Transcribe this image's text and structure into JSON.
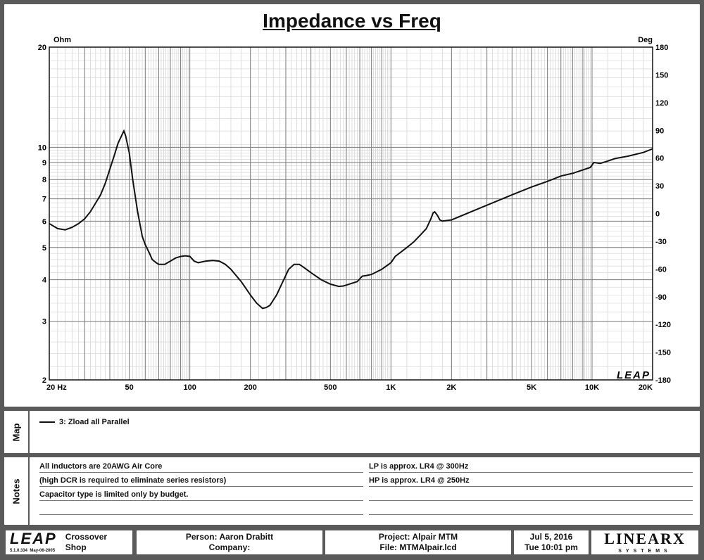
{
  "chart_data": {
    "type": "line",
    "title": "Impedance vs Freq",
    "left_axis_unit": "Ohm",
    "right_axis_unit": "Deg",
    "xscale": "log",
    "yscale": "log",
    "xlim": [
      20,
      20000
    ],
    "ylim": [
      2,
      20
    ],
    "y2lim": [
      -180,
      180
    ],
    "x_tick_labels": [
      {
        "v": 20,
        "t": "20  Hz"
      },
      {
        "v": 50,
        "t": "50"
      },
      {
        "v": 100,
        "t": "100"
      },
      {
        "v": 200,
        "t": "200"
      },
      {
        "v": 500,
        "t": "500"
      },
      {
        "v": 1000,
        "t": "1K"
      },
      {
        "v": 2000,
        "t": "2K"
      },
      {
        "v": 5000,
        "t": "5K"
      },
      {
        "v": 10000,
        "t": "10K"
      },
      {
        "v": 20000,
        "t": "20K"
      }
    ],
    "y_tick_labels": [
      {
        "v": 20,
        "t": "20"
      },
      {
        "v": 10,
        "t": "10"
      },
      {
        "v": 9,
        "t": "9"
      },
      {
        "v": 8,
        "t": "8"
      },
      {
        "v": 7,
        "t": "7"
      },
      {
        "v": 6,
        "t": "6"
      },
      {
        "v": 5,
        "t": "5"
      },
      {
        "v": 4,
        "t": "4"
      },
      {
        "v": 3,
        "t": "3"
      },
      {
        "v": 2,
        "t": "2"
      }
    ],
    "y2_ticks": [
      180,
      150,
      120,
      90,
      60,
      30,
      0,
      -30,
      -60,
      -90,
      -120,
      -150,
      -180
    ],
    "watermark": "LEAP",
    "series": [
      {
        "name": "3: Zload all Parallel",
        "x": [
          20,
          22,
          24,
          26,
          28,
          30,
          32,
          34,
          36,
          38,
          40,
          42,
          44,
          46,
          47,
          48,
          50,
          52,
          55,
          58,
          60,
          63,
          65,
          68,
          70,
          75,
          80,
          85,
          90,
          95,
          100,
          105,
          110,
          120,
          130,
          140,
          150,
          160,
          180,
          200,
          215,
          230,
          240,
          250,
          270,
          290,
          310,
          330,
          350,
          370,
          400,
          450,
          500,
          550,
          580,
          620,
          680,
          720,
          760,
          800,
          900,
          950,
          1000,
          1050,
          1200,
          1300,
          1400,
          1500,
          1580,
          1620,
          1650,
          1700,
          1750,
          1800,
          2000,
          2500,
          3000,
          4000,
          5000,
          6000,
          7000,
          8000,
          9000,
          9800,
          10200,
          11000,
          12000,
          13000,
          15000,
          18000,
          20000
        ],
        "y": [
          5.9,
          5.7,
          5.65,
          5.75,
          5.9,
          6.1,
          6.4,
          6.8,
          7.2,
          7.8,
          8.6,
          9.4,
          10.3,
          10.9,
          11.2,
          10.8,
          9.6,
          8.0,
          6.4,
          5.4,
          5.1,
          4.8,
          4.6,
          4.5,
          4.45,
          4.45,
          4.55,
          4.65,
          4.7,
          4.72,
          4.7,
          4.55,
          4.5,
          4.55,
          4.57,
          4.55,
          4.45,
          4.3,
          3.95,
          3.6,
          3.4,
          3.28,
          3.3,
          3.35,
          3.6,
          3.95,
          4.3,
          4.45,
          4.45,
          4.35,
          4.2,
          4.0,
          3.88,
          3.82,
          3.83,
          3.88,
          3.95,
          4.1,
          4.12,
          4.15,
          4.3,
          4.4,
          4.5,
          4.7,
          5.0,
          5.2,
          5.45,
          5.7,
          6.1,
          6.35,
          6.4,
          6.25,
          6.05,
          6.0,
          6.05,
          6.4,
          6.7,
          7.2,
          7.6,
          7.9,
          8.2,
          8.35,
          8.55,
          8.7,
          9.0,
          8.95,
          9.1,
          9.25,
          9.4,
          9.65,
          9.9
        ]
      }
    ]
  },
  "map": {
    "label": "Map",
    "legend_text": "3: Zload all Parallel"
  },
  "notes": {
    "label": "Notes",
    "left_lines": [
      "All inductors are 20AWG Air Core",
      "(high DCR is required to eliminate series resistors)",
      "Capacitor type is limited only by budget.",
      ""
    ],
    "right_lines": [
      "LP is approx. LR4 @ 300Hz",
      "HP is approx. LR4 @ 250Hz",
      "",
      ""
    ]
  },
  "footer": {
    "logo": "LEAP",
    "version": "5.1.0.334",
    "version_date": "May-06-2005",
    "product_line1": "Crossover",
    "product_line2": "Shop",
    "person": "Person: Aaron Drabitt",
    "company": "Company:",
    "project": "Project: Alpair MTM",
    "file": "File: MTMAlpair.lcd",
    "date": "Jul  5, 2016",
    "time": "Tue 10:01 pm",
    "brand": "LINEARX",
    "brand_sub": "SYSTEMS"
  }
}
